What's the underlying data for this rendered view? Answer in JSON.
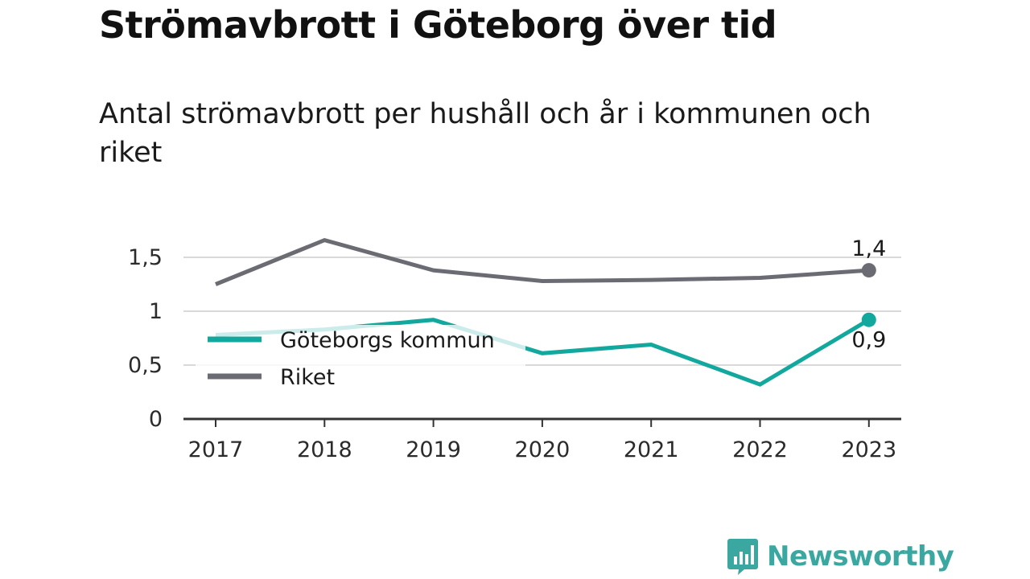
{
  "header": {
    "title": "Strömavbrott i Göteborg över tid",
    "subtitle": "Antal strömavbrott per hushåll och år i kommunen och riket"
  },
  "chart_data": {
    "type": "line",
    "categories": [
      "2017",
      "2018",
      "2019",
      "2020",
      "2021",
      "2022",
      "2023"
    ],
    "series": [
      {
        "name": "Göteborgs kommun",
        "color": "#13a89e",
        "values": [
          0.78,
          0.83,
          0.92,
          0.61,
          0.69,
          0.32,
          0.92
        ],
        "end_label": "0,9"
      },
      {
        "name": "Riket",
        "color": "#6b6b73",
        "values": [
          1.25,
          1.66,
          1.38,
          1.28,
          1.29,
          1.31,
          1.38
        ],
        "end_label": "1,4"
      }
    ],
    "y_ticks": [
      {
        "value": 0,
        "label": "0"
      },
      {
        "value": 0.5,
        "label": "0,5"
      },
      {
        "value": 1,
        "label": "1"
      },
      {
        "value": 1.5,
        "label": "1,5"
      }
    ],
    "ylim": [
      0,
      1.5
    ],
    "grid": true,
    "legend_position": "left, inside plot area"
  },
  "brand": {
    "name": "Newsworthy",
    "color": "#3aa8a0",
    "icon": "bar-chart-speech-bubble-icon"
  }
}
